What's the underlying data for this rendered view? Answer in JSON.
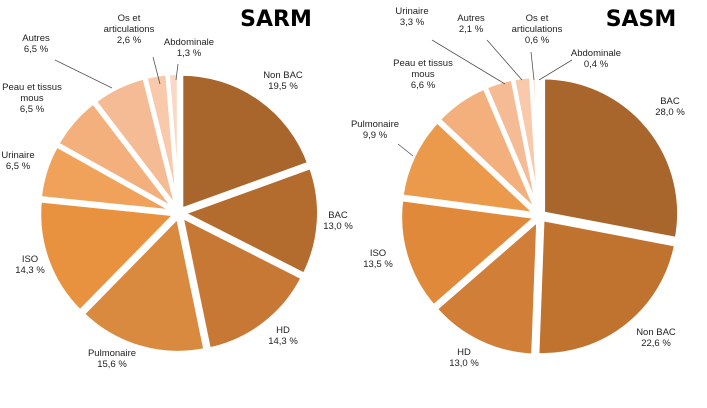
{
  "chart_data": [
    {
      "type": "pie",
      "title": "SARM",
      "slices": [
        {
          "name": "Non BAC",
          "value": 19.5,
          "label": "19,5 %",
          "color": "#a8652c"
        },
        {
          "name": "BAC",
          "value": 13.0,
          "label": "13,0 %",
          "color": "#b36b2e"
        },
        {
          "name": "HD",
          "value": 14.3,
          "label": "14,3 %",
          "color": "#c87835"
        },
        {
          "name": "Pulmonaire",
          "value": 15.6,
          "label": "15,6 %",
          "color": "#d98a3e"
        },
        {
          "name": "ISO",
          "value": 14.3,
          "label": "14,3 %",
          "color": "#e8913f"
        },
        {
          "name": "Urinaire",
          "value": 6.5,
          "label": "6,5 %",
          "color": "#f0a15a"
        },
        {
          "name": "Peau et tissus mous",
          "value": 6.5,
          "label": "6,5 %",
          "color": "#f3b07c"
        },
        {
          "name": "Autres",
          "value": 6.5,
          "label": "6,5 %",
          "color": "#f5bb94"
        },
        {
          "name": "Os et articulations",
          "value": 2.6,
          "label": "2,6 %",
          "color": "#f8c9ab"
        },
        {
          "name": "Abdominale",
          "value": 1.3,
          "label": "1,3 %",
          "color": "#fad8c6"
        }
      ]
    },
    {
      "type": "pie",
      "title": "SASM",
      "slices": [
        {
          "name": "BAC",
          "value": 28.0,
          "label": "28,0 %",
          "color": "#a8652c"
        },
        {
          "name": "Non BAC",
          "value": 22.6,
          "label": "22,6 %",
          "color": "#c0722f"
        },
        {
          "name": "HD",
          "value": 13.0,
          "label": "13,0 %",
          "color": "#d07e38"
        },
        {
          "name": "ISO",
          "value": 13.5,
          "label": "13,5 %",
          "color": "#e0893a"
        },
        {
          "name": "Pulmonaire",
          "value": 9.9,
          "label": "9,9 %",
          "color": "#eb9a4c"
        },
        {
          "name": "Peau et tissus mous",
          "value": 6.6,
          "label": "6,6 %",
          "color": "#f3b07c"
        },
        {
          "name": "Urinaire",
          "value": 3.3,
          "label": "3,3 %",
          "color": "#f5bb94"
        },
        {
          "name": "Autres",
          "value": 2.1,
          "label": "2,1 %",
          "color": "#f8c9ab"
        },
        {
          "name": "Os et articulations",
          "value": 0.6,
          "label": "0,6 %",
          "color": "#fad8c6"
        },
        {
          "name": "Abdominale",
          "value": 0.4,
          "label": "0,4 %",
          "color": "#fce4d6"
        }
      ]
    }
  ]
}
